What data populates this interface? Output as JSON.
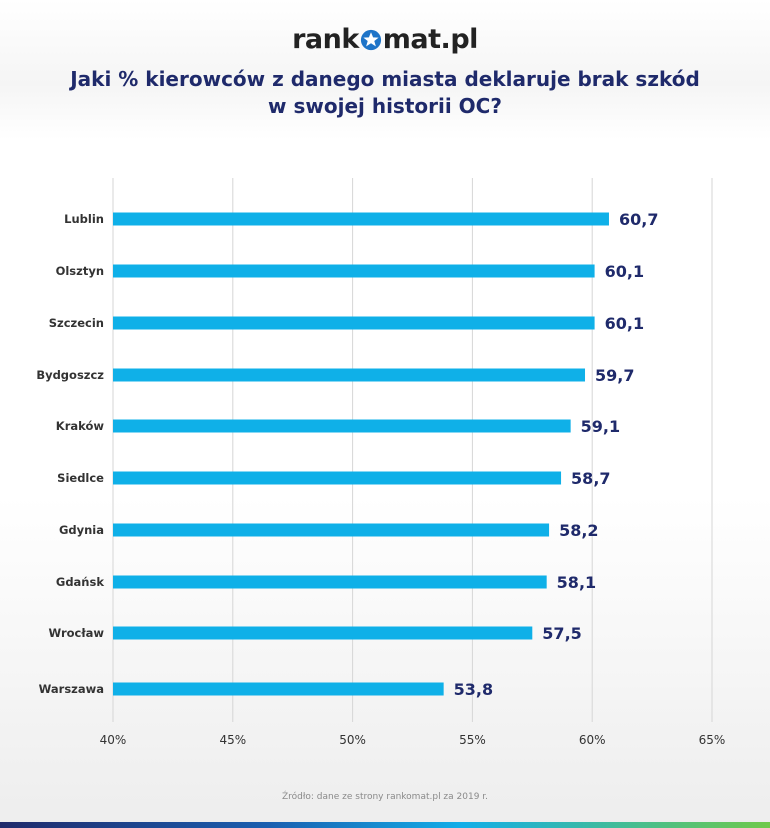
{
  "logo": {
    "left": "rank",
    "right": "mat.pl"
  },
  "title": {
    "line1": "Jaki % kierowców z danego miasta deklaruje brak szkód",
    "line2": "w swojej historii OC?"
  },
  "source": "Źródło: dane ze strony rankomat.pl za 2019 r.",
  "colors": {
    "bar": "#0fb0e8",
    "label": "#1f2a6b",
    "grid": "#d6d6d6",
    "axis_text": "#333333"
  },
  "chart_data": {
    "type": "bar",
    "orientation": "horizontal",
    "categories": [
      "Lublin",
      "Olsztyn",
      "Szczecin",
      "Bydgoszcz",
      "Kraków",
      "Siedlce",
      "Gdynia",
      "Gdańsk",
      "Wrocław",
      "Warszawa"
    ],
    "values": [
      60.7,
      60.1,
      60.1,
      59.7,
      59.1,
      58.7,
      58.2,
      58.1,
      57.5,
      53.8
    ],
    "value_labels": [
      "60,7",
      "60,1",
      "60,1",
      "59,7",
      "59,1",
      "58,7",
      "58,2",
      "58,1",
      "57,5",
      "53,8"
    ],
    "xlim": [
      40,
      65
    ],
    "xticks": [
      40,
      45,
      50,
      55,
      60,
      65
    ],
    "xtick_labels": [
      "40%",
      "45%",
      "50%",
      "55%",
      "60%",
      "65%"
    ],
    "grid": true,
    "title": "Jaki % kierowców z danego miasta deklaruje brak szkód w swojej historii OC?"
  }
}
